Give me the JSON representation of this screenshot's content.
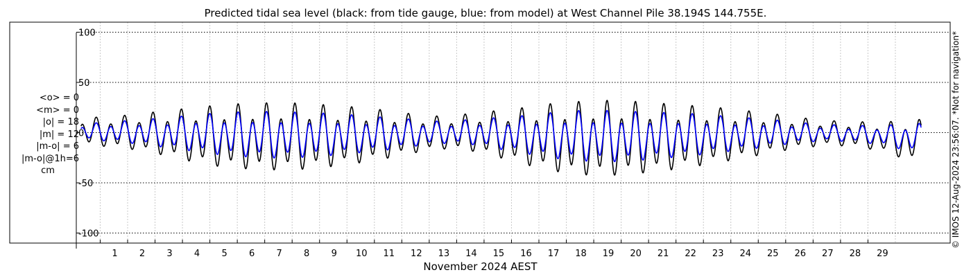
{
  "chart_data": {
    "type": "line",
    "title": "Predicted tidal sea level (black: from tide gauge, blue: from model) at West Channel Pile 38.194S 144.755E.",
    "xlabel": "November 2024 AEST",
    "ylabel": "cm",
    "xlim": [
      -2.3,
      32
    ],
    "ylim": [
      -110,
      110
    ],
    "x_ticks": [
      1,
      2,
      3,
      4,
      5,
      6,
      7,
      8,
      9,
      10,
      11,
      12,
      13,
      14,
      15,
      16,
      17,
      18,
      19,
      20,
      21,
      22,
      23,
      24,
      25,
      26,
      27,
      28,
      29
    ],
    "x_tick_labels": [
      "1",
      "2",
      "3",
      "4",
      "5",
      "6",
      "7",
      "8",
      "9",
      "10",
      "11",
      "12",
      "13",
      "14",
      "15",
      "16",
      "17",
      "18",
      "19",
      "20",
      "21",
      "22",
      "23",
      "24",
      "25",
      "26",
      "27",
      "28",
      "29"
    ],
    "y_ticks": [
      -100,
      -50,
      0,
      50,
      100
    ],
    "y_tick_labels": [
      "-100",
      "-50",
      "0",
      "50",
      "100"
    ],
    "grid": true,
    "day_range": [
      0.3,
      30.95
    ],
    "series": [
      {
        "name": "tide gauge",
        "color": "#000000",
        "daily_high_max": [
          15,
          16,
          19,
          22,
          25,
          28,
          29,
          30,
          29,
          27,
          25,
          22,
          18,
          16,
          19,
          22,
          25,
          29,
          31,
          32,
          31,
          29,
          27,
          25,
          22,
          19,
          15,
          12,
          11,
          10,
          13
        ],
        "daily_low_min": [
          -14,
          -16,
          -20,
          -26,
          -33,
          -38,
          -40,
          -41,
          -40,
          -37,
          -33,
          -28,
          -22,
          -18,
          -20,
          -27,
          -35,
          -42,
          -46,
          -47,
          -45,
          -42,
          -38,
          -33,
          -28,
          -22,
          -17,
          -14,
          -15,
          -20,
          -30
        ]
      },
      {
        "name": "model",
        "color": "#0000ff",
        "daily_high_max": [
          9,
          11,
          13,
          15,
          18,
          20,
          21,
          21,
          20,
          19,
          17,
          15,
          13,
          11,
          13,
          15,
          17,
          20,
          22,
          22,
          21,
          20,
          19,
          17,
          15,
          13,
          10,
          8,
          7,
          7,
          9
        ],
        "daily_low_min": [
          -8,
          -10,
          -13,
          -17,
          -21,
          -25,
          -27,
          -28,
          -27,
          -25,
          -22,
          -19,
          -15,
          -12,
          -13,
          -18,
          -23,
          -28,
          -31,
          -32,
          -31,
          -28,
          -26,
          -22,
          -19,
          -15,
          -11,
          -9,
          -10,
          -13,
          -20
        ]
      }
    ]
  },
  "stats": {
    "mean_obs": "<o> = 0",
    "mean_model": "<m> = 0",
    "abs_obs": "|o| = 18",
    "abs_model": "|m| = 12",
    "abs_diff": "|m-o| = 6",
    "abs_diff_1h": "|m-o|@1h=6",
    "unit": "cm"
  },
  "side_note": "© IMOS 12-Aug-2024 23:56:07. *Not for navigation*"
}
